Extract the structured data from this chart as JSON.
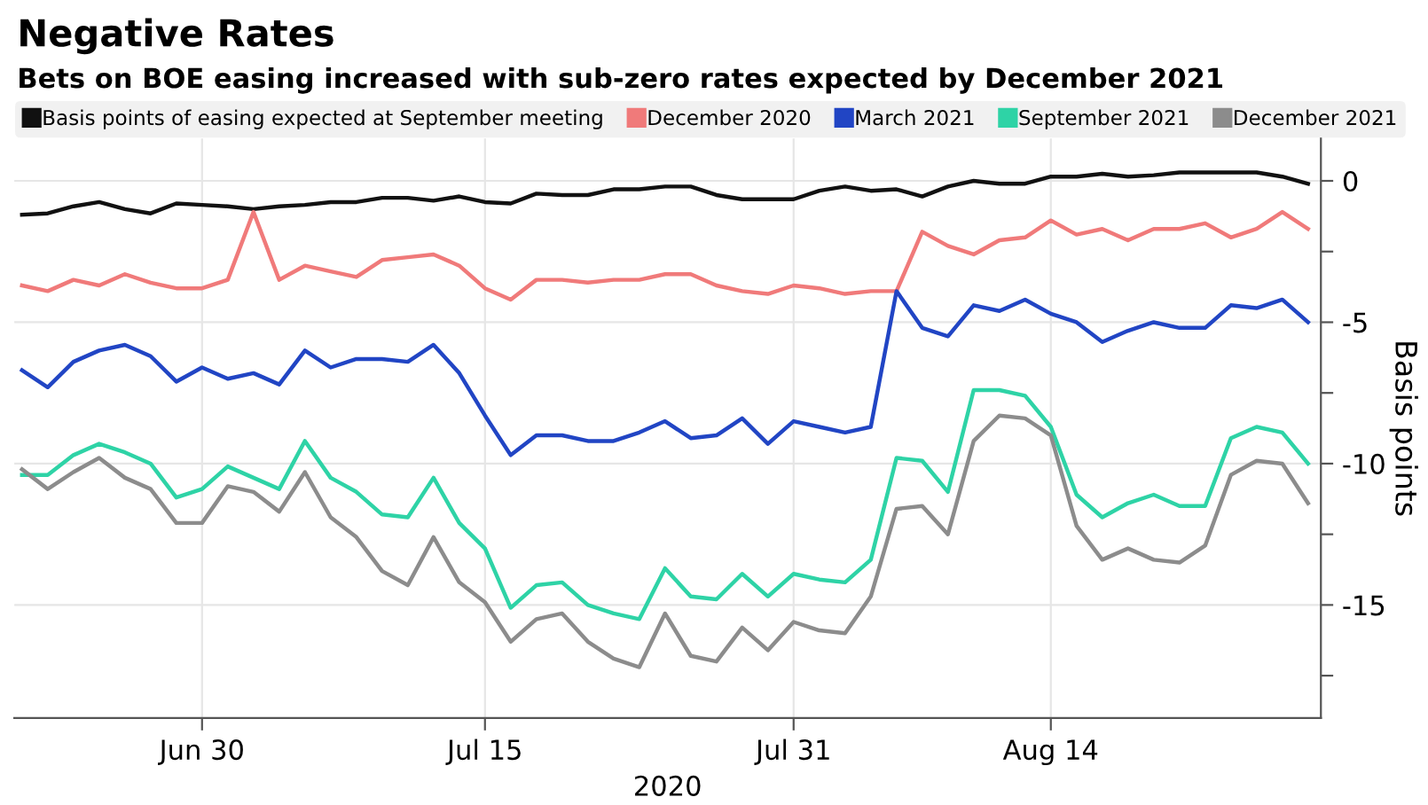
{
  "chart_data": {
    "type": "line",
    "title": "Negative Rates",
    "subtitle": "Bets on BOE easing increased with sub-zero rates expected by December 2021",
    "xlabel": "2020",
    "ylabel": "Basis points",
    "categories": [
      null,
      null,
      null,
      null,
      null,
      null,
      null,
      "Jun 30",
      null,
      null,
      null,
      null,
      null,
      null,
      null,
      null,
      null,
      null,
      "Jul 15",
      null,
      null,
      null,
      null,
      null,
      null,
      null,
      null,
      null,
      null,
      null,
      "Jul 31",
      null,
      null,
      null,
      null,
      null,
      null,
      null,
      null,
      null,
      "Aug 14",
      null,
      null,
      null,
      null,
      null,
      null,
      null,
      null,
      null,
      null
    ],
    "series": [
      {
        "name": "Basis points of easing expected at September meeting",
        "color": "#111111",
        "values": [
          -1.2,
          -1.15,
          -0.9,
          -0.75,
          -1.0,
          -1.15,
          -0.8,
          -0.85,
          -0.9,
          -1.0,
          -0.9,
          -0.85,
          -0.75,
          -0.75,
          -0.6,
          -0.6,
          -0.7,
          -0.55,
          -0.75,
          -0.8,
          -0.45,
          -0.5,
          -0.5,
          -0.3,
          -0.3,
          -0.2,
          -0.2,
          -0.5,
          -0.65,
          -0.65,
          -0.65,
          -0.35,
          -0.2,
          -0.35,
          -0.3,
          -0.55,
          -0.2,
          0.0,
          -0.1,
          -0.1,
          0.15,
          0.15,
          0.25,
          0.15,
          0.2,
          0.3,
          0.3,
          0.3,
          0.3,
          0.15,
          -0.1
        ]
      },
      {
        "name": "December 2020",
        "color": "#f07a7a",
        "values": [
          -3.7,
          -3.9,
          -3.5,
          -3.7,
          -3.3,
          -3.6,
          -3.8,
          -3.8,
          -3.5,
          -1.1,
          -3.5,
          -3.0,
          -3.2,
          -3.4,
          -2.8,
          -2.7,
          -2.6,
          -3.0,
          -3.8,
          -4.2,
          -3.5,
          -3.5,
          -3.6,
          -3.5,
          -3.5,
          -3.3,
          -3.3,
          -3.7,
          -3.9,
          -4.0,
          -3.7,
          -3.8,
          -4.0,
          -3.9,
          -3.9,
          -1.8,
          -2.3,
          -2.6,
          -2.1,
          -2.0,
          -1.4,
          -1.9,
          -1.7,
          -2.1,
          -1.7,
          -1.7,
          -1.5,
          -2.0,
          -1.7,
          -1.1,
          -1.7
        ]
      },
      {
        "name": "March 2021",
        "color": "#2145c4",
        "values": [
          -6.7,
          -7.3,
          -6.4,
          -6.0,
          -5.8,
          -6.2,
          -7.1,
          -6.6,
          -7.0,
          -6.8,
          -7.2,
          -6.0,
          -6.6,
          -6.3,
          -6.3,
          -6.4,
          -5.8,
          -6.8,
          -8.3,
          -9.7,
          -9.0,
          -9.0,
          -9.2,
          -9.2,
          -8.9,
          -8.5,
          -9.1,
          -9.0,
          -8.4,
          -9.3,
          -8.5,
          -8.7,
          -8.9,
          -8.7,
          -3.9,
          -5.2,
          -5.5,
          -4.4,
          -4.6,
          -4.2,
          -4.7,
          -5.0,
          -5.7,
          -5.3,
          -5.0,
          -5.2,
          -5.2,
          -4.4,
          -4.5,
          -4.2,
          -5.0
        ]
      },
      {
        "name": "September 2021",
        "color": "#2ed3a6",
        "values": [
          -10.4,
          -10.4,
          -9.7,
          -9.3,
          -9.6,
          -10.0,
          -11.2,
          -10.9,
          -10.1,
          -10.5,
          -10.9,
          -9.2,
          -10.5,
          -11.0,
          -11.8,
          -11.9,
          -10.5,
          -12.1,
          -13.0,
          -15.1,
          -14.3,
          -14.2,
          -15.0,
          -15.3,
          -15.5,
          -13.7,
          -14.7,
          -14.8,
          -13.9,
          -14.7,
          -13.9,
          -14.1,
          -14.2,
          -13.4,
          -9.8,
          -9.9,
          -11.0,
          -7.4,
          -7.4,
          -7.6,
          -8.7,
          -11.1,
          -11.9,
          -11.4,
          -11.1,
          -11.5,
          -11.5,
          -9.1,
          -8.7,
          -8.9,
          -10.0
        ]
      },
      {
        "name": "December 2021",
        "color": "#8c8c8c",
        "values": [
          -10.2,
          -10.9,
          -10.3,
          -9.8,
          -10.5,
          -10.9,
          -12.1,
          -12.1,
          -10.8,
          -11.0,
          -11.7,
          -10.3,
          -11.9,
          -12.6,
          -13.8,
          -14.3,
          -12.6,
          -14.2,
          -14.9,
          -16.3,
          -15.5,
          -15.3,
          -16.3,
          -16.9,
          -17.2,
          -15.3,
          -16.8,
          -17.0,
          -15.8,
          -16.6,
          -15.6,
          -15.9,
          -16.0,
          -14.7,
          -11.6,
          -11.5,
          -12.5,
          -9.2,
          -8.3,
          -8.4,
          -9.0,
          -12.2,
          -13.4,
          -13.0,
          -13.4,
          -13.5,
          -12.9,
          -10.4,
          -9.9,
          -10.0,
          -11.4
        ]
      }
    ],
    "ylim": [
      -19,
      1.5
    ],
    "yticks": [
      0,
      {
        "value": -2.5,
        "label": null
      },
      -5,
      {
        "value": -7.5,
        "label": null
      },
      -10,
      {
        "value": -12.5,
        "label": null
      },
      -15,
      {
        "value": -17.5,
        "label": null
      }
    ],
    "grid": true,
    "legend": "top",
    "line_style": "solid",
    "marker": "none"
  }
}
